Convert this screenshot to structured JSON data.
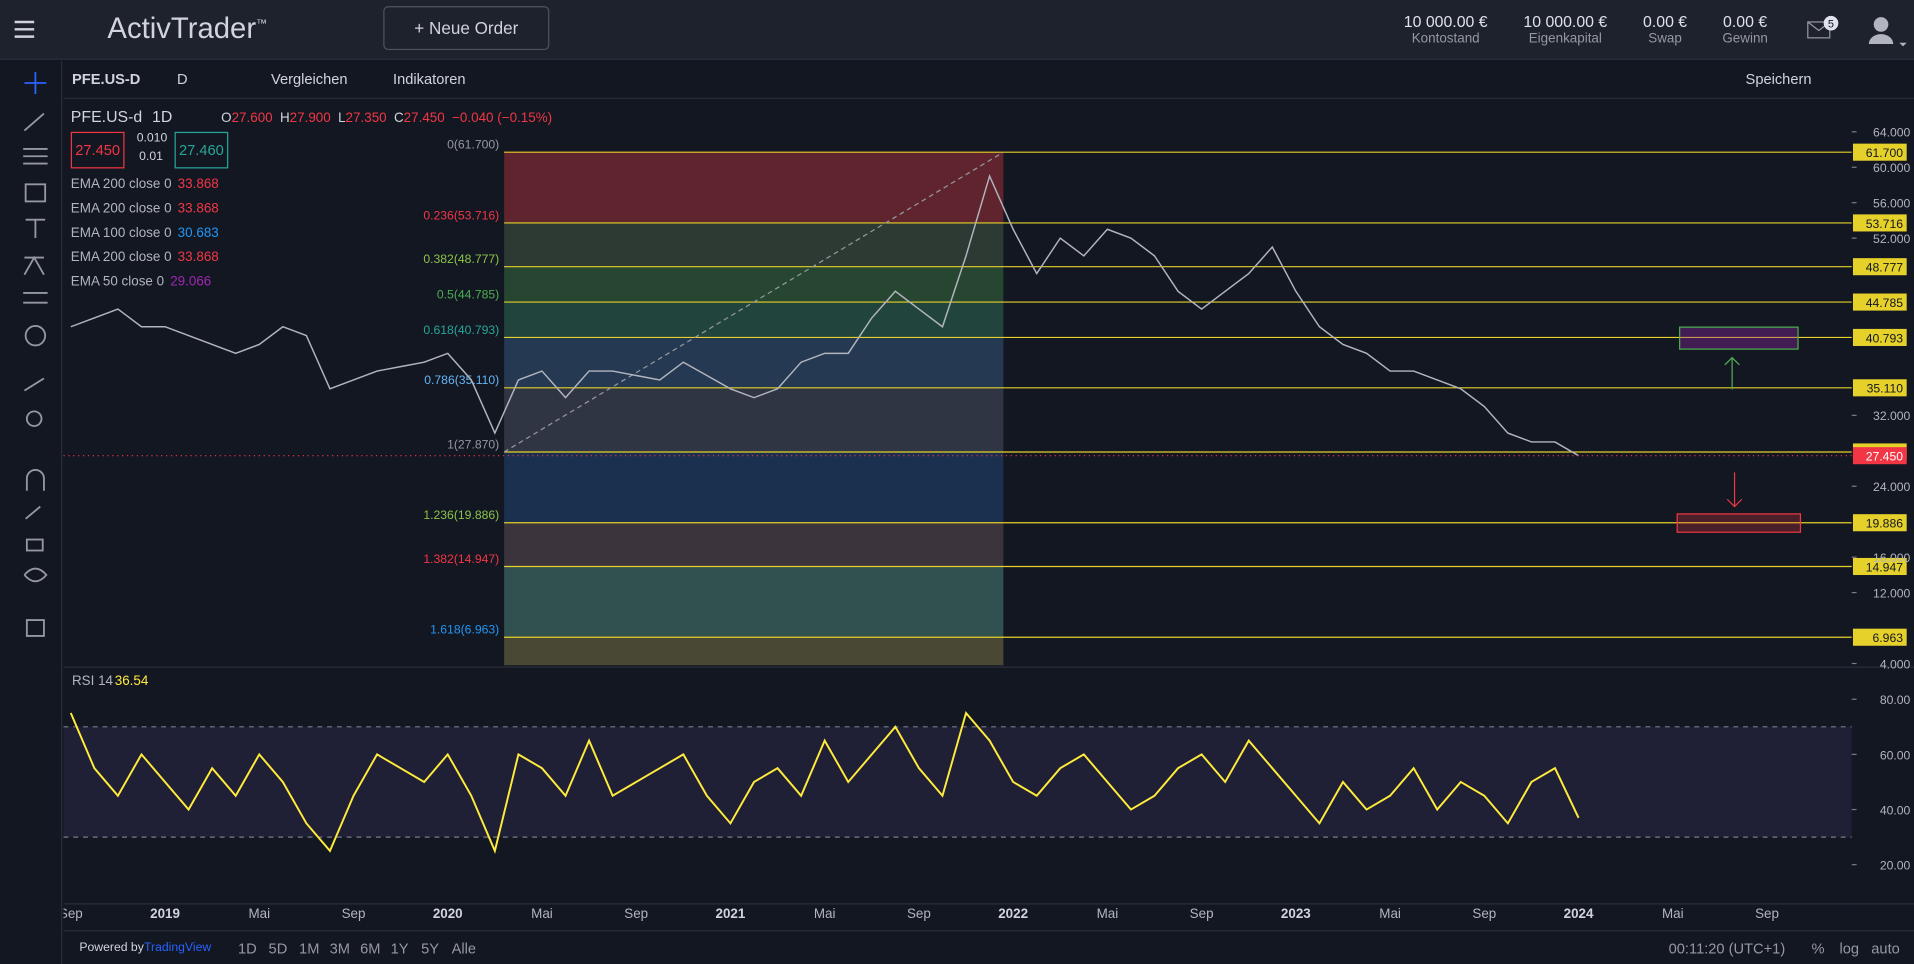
{
  "header": {
    "logo": "ActivTrader",
    "trademark": "™",
    "new_order": "Neue Order",
    "stats": [
      {
        "value": "10 000.00 €",
        "label": "Kontostand"
      },
      {
        "value": "10 000.00 €",
        "label": "Eigenkapital"
      },
      {
        "value": "0.00 €",
        "label": "Swap"
      },
      {
        "value": "0.00 €",
        "label": "Gewinn"
      }
    ],
    "messages": "5"
  },
  "toolbar": {
    "symbol": "PFE.US-D",
    "interval": "D",
    "compare": "Vergleichen",
    "indicators": "Indikatoren",
    "save": "Speichern"
  },
  "legend": {
    "symbol": "PFE.US-d",
    "interval": "1D",
    "ohlc": [
      {
        "label": "O",
        "value": "27.600"
      },
      {
        "label": "H",
        "value": "27.900"
      },
      {
        "label": "L",
        "value": "27.350"
      },
      {
        "label": "C",
        "value": "27.450"
      }
    ],
    "change": "−0.040 (−0.15%)",
    "bid": "27.450",
    "spread_top": "0.010",
    "spread_bottom": "0.01",
    "ask": "27.460",
    "indicators": [
      {
        "name": "EMA 200 close 0",
        "value": "33.868",
        "color": "#f23645"
      },
      {
        "name": "EMA 200 close 0",
        "value": "33.868",
        "color": "#f23645"
      },
      {
        "name": "EMA 100 close 0",
        "value": "30.683",
        "color": "#2196f3"
      },
      {
        "name": "EMA 200 close 0",
        "value": "33.868",
        "color": "#f23645"
      },
      {
        "name": "EMA 50 close 0",
        "value": "29.066",
        "color": "#9c27b0"
      }
    ]
  },
  "chart_data": [
    {
      "type": "line",
      "categories": [
        "Sep",
        null,
        null,
        null,
        "2019",
        null,
        null,
        null,
        "Mai",
        null,
        null,
        null,
        "Sep",
        null,
        null,
        null,
        "2020",
        null,
        null,
        null,
        "Mai",
        null,
        null,
        null,
        "Sep",
        null,
        null,
        null,
        "2021",
        null,
        null,
        null,
        "Mai",
        null,
        null,
        null,
        "Sep",
        null,
        null,
        null,
        "2022",
        null,
        null,
        null,
        "Mai",
        null,
        null,
        null,
        "Sep",
        null,
        null,
        null,
        "2023",
        null,
        null,
        null,
        "Mai",
        null,
        null,
        null,
        "Sep",
        null,
        null,
        null,
        "2024",
        null,
        null,
        null,
        "Mai",
        null,
        null,
        null,
        "Sep"
      ],
      "series": [
        {
          "color": "#b2b5be",
          "values": [
            42,
            43,
            44,
            42,
            42,
            41,
            40,
            39,
            40,
            42,
            41,
            35,
            36,
            37,
            37.5,
            38,
            39,
            36,
            30,
            36,
            37,
            34,
            37,
            37,
            36.5,
            36,
            38,
            36.5,
            35,
            34,
            35,
            38,
            39,
            39,
            43,
            46,
            44,
            42,
            50,
            59,
            53,
            48,
            52,
            50,
            53,
            52,
            50,
            46,
            44,
            46,
            48,
            51,
            46,
            42,
            40,
            39,
            37,
            37,
            36,
            35,
            33,
            30,
            29,
            29,
            27.45,
            null,
            null,
            null,
            null,
            null,
            null,
            null,
            null
          ]
        }
      ],
      "ylim": [
        3.8,
        66.2
      ],
      "yticks": [
        {
          "value": 64,
          "label": "64.000"
        },
        {
          "value": 60,
          "label": "60.000"
        },
        {
          "value": 56,
          "label": "56.000"
        },
        {
          "value": 52,
          "label": "52.000"
        },
        {
          "value": 32,
          "label": "32.000"
        },
        {
          "value": 24,
          "label": "24.000"
        },
        {
          "value": 16,
          "label": "16.000"
        },
        {
          "value": 12,
          "label": "12.000"
        },
        {
          "value": 4,
          "label": "4.000"
        }
      ],
      "last_price": {
        "value": 27.45,
        "label": "27.450",
        "color": "#f23645"
      },
      "fib_levels": [
        {
          "label": "0(61.700)",
          "price": 61.7,
          "tag": "61.700",
          "label_color": "#9598a1",
          "band_color": "#7a2a33"
        },
        {
          "label": "0.236(53.716)",
          "price": 53.716,
          "tag": "53.716",
          "label_color": "#f23645",
          "band_color": "#36473a"
        },
        {
          "label": "0.382(48.777)",
          "price": 48.777,
          "tag": "48.777",
          "label_color": "#8bc34a",
          "band_color": "#2e5738"
        },
        {
          "label": "0.5(44.785)",
          "price": 44.785,
          "tag": "44.785",
          "label_color": "#4caf50",
          "band_color": "#275545"
        },
        {
          "label": "0.618(40.793)",
          "price": 40.793,
          "tag": "40.793",
          "label_color": "#26a69a",
          "band_color": "#2c4563"
        },
        {
          "label": "0.786(35.110)",
          "price": 35.11,
          "tag": "35.110",
          "label_color": "#64b5f6",
          "band_color": "#3a404e"
        },
        {
          "label": "1(27.870)",
          "price": 27.87,
          "tag": "27.870",
          "label_color": "#9598a1",
          "band_color": "#1e3a5e"
        },
        {
          "label": "1.236(19.886)",
          "price": 19.886,
          "tag": "19.886",
          "label_color": "#8bc34a",
          "band_color": "#4a3f45"
        },
        {
          "label": "1.382(14.947)",
          "price": 14.947,
          "tag": "14.947",
          "label_color": "#f23645",
          "band_color": "#3b6560"
        },
        {
          "label": "1.618(6.963)",
          "price": 6.963,
          "tag": "6.963",
          "label_color": "#2196f3",
          "band_color": "#5b5a3c"
        }
      ]
    },
    {
      "type": "line",
      "title": "RSI 14",
      "last_value": "36.54",
      "series": [
        {
          "color": "#ffeb3b",
          "values": [
            75,
            55,
            45,
            60,
            50,
            40,
            55,
            45,
            60,
            50,
            35,
            25,
            45,
            60,
            55,
            50,
            60,
            45,
            25,
            60,
            55,
            45,
            65,
            45,
            50,
            55,
            60,
            45,
            35,
            50,
            55,
            45,
            65,
            50,
            60,
            70,
            55,
            45,
            75,
            65,
            50,
            45,
            55,
            60,
            50,
            40,
            45,
            55,
            60,
            50,
            65,
            55,
            45,
            35,
            50,
            40,
            45,
            55,
            40,
            50,
            45,
            35,
            50,
            55,
            37,
            null,
            null,
            null,
            null,
            null,
            null,
            null,
            null
          ]
        }
      ],
      "ylim": [
        6,
        91
      ],
      "yticks": [
        {
          "value": 80,
          "label": "80.00"
        },
        {
          "value": 60,
          "label": "60.00"
        },
        {
          "value": 40,
          "label": "40.00"
        },
        {
          "value": 20,
          "label": "20.00"
        }
      ],
      "bands": [
        30,
        70
      ]
    }
  ],
  "footer": {
    "powered": "Powered by",
    "brand": "TradingView",
    "ranges": [
      "1D",
      "5D",
      "1M",
      "3M",
      "6M",
      "1Y",
      "5Y",
      "Alle"
    ],
    "clock": "00:11:20 (UTC+1)",
    "percent": "%",
    "log": "log",
    "auto": "auto"
  }
}
